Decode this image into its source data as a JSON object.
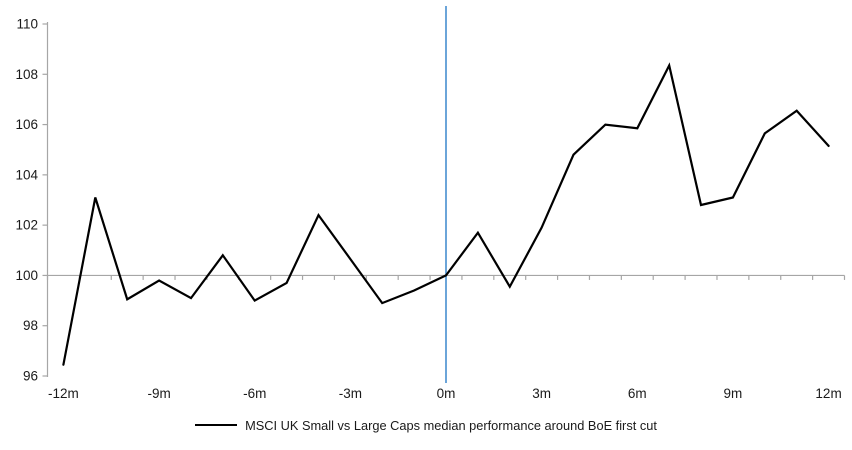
{
  "chart_data": {
    "type": "line",
    "title": "",
    "x_unit": "months relative to BoE first rate cut",
    "x": [
      -12,
      -11,
      -10,
      -9,
      -8,
      -7,
      -6,
      -5,
      -4,
      -3,
      -2,
      -1,
      0,
      1,
      2,
      3,
      4,
      5,
      6,
      7,
      8,
      9,
      10,
      11,
      12
    ],
    "series": [
      {
        "name": "MSCI UK Small vs Large Caps median performance around BoE first cut",
        "color": "#000000",
        "values": [
          96.45,
          103.1,
          99.05,
          99.8,
          99.1,
          100.8,
          99.0,
          99.7,
          102.4,
          100.65,
          98.9,
          99.4,
          100.0,
          101.7,
          99.55,
          101.9,
          104.8,
          106.0,
          105.85,
          108.35,
          102.8,
          103.1,
          105.65,
          106.55,
          105.15
        ]
      }
    ],
    "x_tick_labels": [
      "-12m",
      "-9m",
      "-6m",
      "-3m",
      "0m",
      "3m",
      "6m",
      "9m",
      "12m"
    ],
    "x_tick_positions": [
      -12,
      -9,
      -6,
      -3,
      0,
      3,
      6,
      9,
      12
    ],
    "y_ticks": [
      "96",
      "98",
      "100",
      "102",
      "104",
      "106",
      "108",
      "110"
    ],
    "ylim": [
      96,
      110
    ],
    "baseline": {
      "value": 100,
      "color": "#a6a6a6"
    },
    "event_line": {
      "x": 0,
      "color": "#5b9bd5"
    },
    "legend": {
      "position": "bottom-center",
      "entries": [
        {
          "label": "MSCI UK Small vs Large Caps median performance around BoE first cut",
          "color": "#000000"
        }
      ]
    },
    "axis_color": "#a6a6a6",
    "text_color": "#1a1a1a",
    "background": "#ffffff",
    "grid": false
  }
}
